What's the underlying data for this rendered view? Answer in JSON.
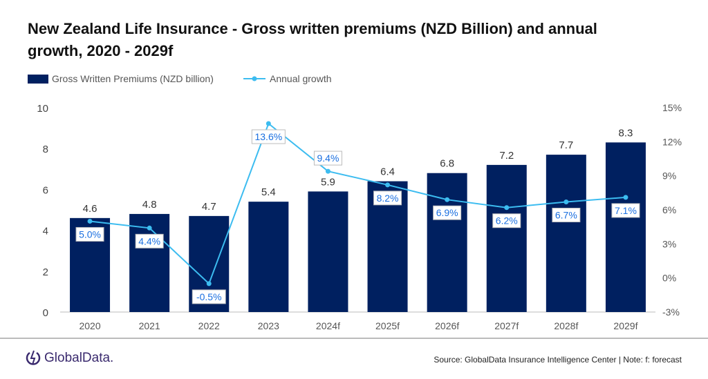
{
  "chart_data": {
    "type": "bar+line",
    "title": "New Zealand Life Insurance - Gross written premiums (NZD Billion) and annual growth, 2020 - 2029f",
    "categories": [
      "2020",
      "2021",
      "2022",
      "2023",
      "2024f",
      "2025f",
      "2026f",
      "2027f",
      "2028f",
      "2029f"
    ],
    "series": [
      {
        "name": "Gross Written Premiums (NZD billion)",
        "type": "bar",
        "axis": "left",
        "color": "#002060",
        "values": [
          4.6,
          4.8,
          4.7,
          5.4,
          5.9,
          6.4,
          6.8,
          7.2,
          7.7,
          8.3
        ]
      },
      {
        "name": "Annual growth",
        "type": "line",
        "axis": "right",
        "color": "#3cbcf0",
        "values": [
          5.0,
          4.4,
          -0.5,
          13.6,
          9.4,
          8.2,
          6.9,
          6.2,
          6.7,
          7.1
        ],
        "labels": [
          "5.0%",
          "4.4%",
          "-0.5%",
          "13.6%",
          "9.4%",
          "8.2%",
          "6.9%",
          "6.2%",
          "6.7%",
          "7.1%"
        ]
      }
    ],
    "left_axis": {
      "range": [
        0,
        10
      ],
      "ticks": [
        "0",
        "2",
        "4",
        "6",
        "8",
        "10"
      ]
    },
    "right_axis": {
      "range": [
        -3,
        15
      ],
      "ticks": [
        "-3%",
        "0%",
        "3%",
        "6%",
        "9%",
        "12%",
        "15%"
      ]
    },
    "legend": "top-left",
    "grid": false
  },
  "footer": {
    "logo": "GlobalData.",
    "source": "Source: GlobalData Insurance Intelligence Center | Note: f: forecast"
  }
}
